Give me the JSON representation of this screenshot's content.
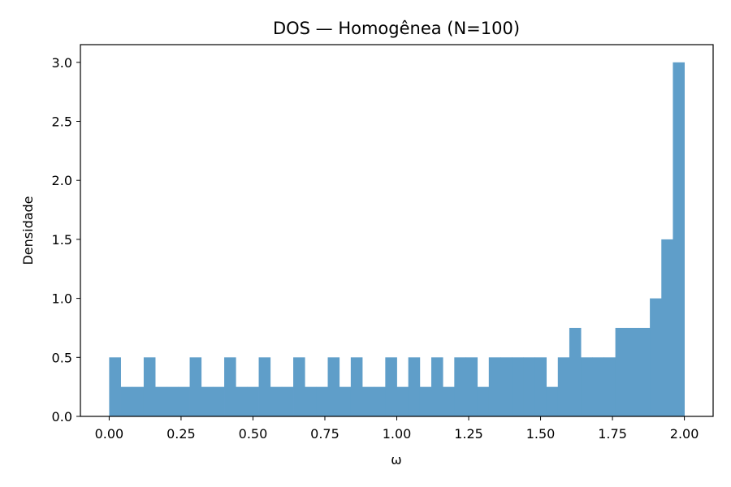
{
  "chart_data": {
    "type": "bar",
    "title": "DOS — Homogênea (N=100)",
    "xlabel": "ω",
    "ylabel": "Densidade",
    "xlim": [
      -0.1,
      2.1
    ],
    "ylim": [
      0,
      3.15
    ],
    "xticks": [
      0.0,
      0.25,
      0.5,
      0.75,
      1.0,
      1.25,
      1.5,
      1.75,
      2.0
    ],
    "xtick_labels": [
      "0.00",
      "0.25",
      "0.50",
      "0.75",
      "1.00",
      "1.25",
      "1.50",
      "1.75",
      "2.00"
    ],
    "yticks": [
      0.0,
      0.5,
      1.0,
      1.5,
      2.0,
      2.5,
      3.0
    ],
    "ytick_labels": [
      "0.0",
      "0.5",
      "1.0",
      "1.5",
      "2.0",
      "2.5",
      "3.0"
    ],
    "bin_range": [
      0.0,
      2.0
    ],
    "bin_count": 50,
    "values": [
      0.5,
      0.25,
      0.25,
      0.5,
      0.25,
      0.25,
      0.25,
      0.5,
      0.25,
      0.25,
      0.5,
      0.25,
      0.25,
      0.5,
      0.25,
      0.25,
      0.5,
      0.25,
      0.25,
      0.5,
      0.25,
      0.5,
      0.25,
      0.25,
      0.5,
      0.25,
      0.5,
      0.25,
      0.5,
      0.25,
      0.5,
      0.5,
      0.25,
      0.5,
      0.5,
      0.5,
      0.5,
      0.5,
      0.25,
      0.5,
      0.75,
      0.5,
      0.5,
      0.5,
      0.75,
      0.75,
      0.75,
      1.0,
      1.5,
      3.0
    ],
    "bar_color": "#5f9ec9",
    "grid": false
  }
}
